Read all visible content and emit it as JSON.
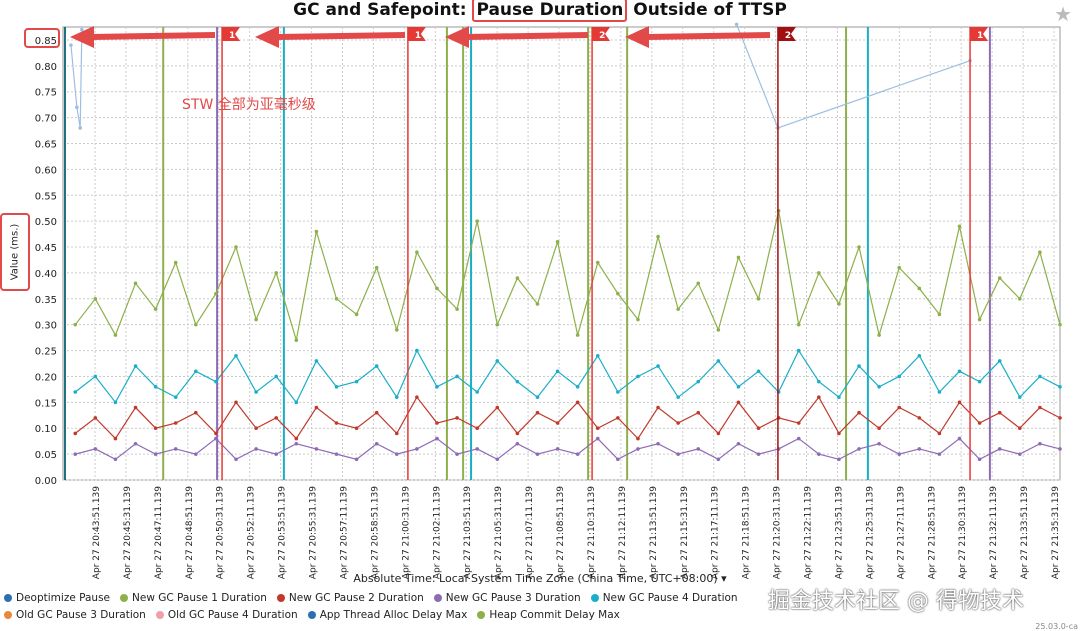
{
  "header": {
    "title_pre": "GC and Safepoint: ",
    "title_highlight": "Pause Duration",
    "title_post": " Outside of TTSP",
    "favorite_icon": "star-icon"
  },
  "annotation": {
    "note": "STW 全部为亚毫秒级"
  },
  "watermark": "掘金技术社区 @ 得物技术",
  "version": "25.03.0-ca",
  "colors": {
    "accent_annotation": "#e24a4a",
    "green": "#8db04a",
    "cyan": "#1aaec8",
    "red": "#c0392b",
    "purple": "#8e6bb5",
    "blue": "#2a6fb0",
    "orange": "#e8893a",
    "pink": "#f0a0a8",
    "lightblue": "#9fbfe0"
  },
  "chart_data": {
    "type": "line",
    "title": "GC and Safepoint: Pause Duration Outside of TTSP",
    "ylabel": "Value (ms.)",
    "xlabel": "Absolute Time: Local System Time Zone (China Time, UTC+08:00) ▾",
    "x_unit": "seconds since Apr 27 20:43:51.139",
    "xlim": [
      -97,
      2918
    ],
    "ylim": [
      0,
      0.875
    ],
    "grid": true,
    "legend_placement": "bottom",
    "yticks": [
      0,
      0.05,
      0.1,
      0.15,
      0.2,
      0.25,
      0.3,
      0.35,
      0.4,
      0.45,
      0.5,
      0.55,
      0.6,
      0.65,
      0.7,
      0.75,
      0.8,
      0.85
    ],
    "xtick_step_seconds": 100,
    "xtick_labels": [
      "Apr 27 20:43:51.139",
      "Apr 27 20:45:31.139",
      "Apr 27 20:47:11.139",
      "Apr 27 20:48:51.139",
      "Apr 27 20:50:31.139",
      "Apr 27 20:52:11.139",
      "Apr 27 20:53:51.139",
      "Apr 27 20:55:31.139",
      "Apr 27 20:57:11.139",
      "Apr 27 20:58:51.139",
      "Apr 27 21:00:31.139",
      "Apr 27 21:02:11.139",
      "Apr 27 21:03:51.139",
      "Apr 27 21:05:31.139",
      "Apr 27 21:07:11.139",
      "Apr 27 21:08:51.139",
      "Apr 27 21:10:31.139",
      "Apr 27 21:12:11.139",
      "Apr 27 21:13:51.139",
      "Apr 27 21:15:31.139",
      "Apr 27 21:17:11.139",
      "Apr 27 21:18:51.139",
      "Apr 27 21:20:31.139",
      "Apr 27 21:22:11.139",
      "Apr 27 21:23:51.139",
      "Apr 27 21:25:31.139",
      "Apr 27 21:27:11.139",
      "Apr 27 21:28:51.139",
      "Apr 27 21:30:31.139",
      "Apr 27 21:32:11.139",
      "Apr 27 21:33:51.139",
      "Apr 27 21:35:31.139"
    ],
    "legend": [
      {
        "name": "Deoptimize Pause",
        "color": "#2a6fb0"
      },
      {
        "name": "New GC Pause 1 Duration",
        "color": "#8db04a"
      },
      {
        "name": "New GC Pause 2 Duration",
        "color": "#c0392b"
      },
      {
        "name": "New GC Pause 3 Duration",
        "color": "#8e6bb5"
      },
      {
        "name": "New GC Pause 4 Duration",
        "color": "#1aaec8"
      },
      {
        "name": "Old GC Pause 3 Duration",
        "color": "#e8893a"
      },
      {
        "name": "Old GC Pause 4 Duration",
        "color": "#f0a0a8"
      },
      {
        "name": "App Thread Alloc Delay Max",
        "color": "#2a6fb0"
      },
      {
        "name": "Heap Commit Delay Max",
        "color": "#8db04a"
      }
    ],
    "series": [
      {
        "name": "New GC Pause 1 Duration",
        "color": "#8db04a",
        "x_start": -60,
        "x_end": 2918,
        "values": [
          0.3,
          0.35,
          0.28,
          0.38,
          0.33,
          0.42,
          0.3,
          0.36,
          0.45,
          0.31,
          0.4,
          0.27,
          0.48,
          0.35,
          0.32,
          0.41,
          0.29,
          0.44,
          0.37,
          0.33,
          0.5,
          0.3,
          0.39,
          0.34,
          0.46,
          0.28,
          0.42,
          0.36,
          0.31,
          0.47,
          0.33,
          0.38,
          0.29,
          0.43,
          0.35,
          0.52,
          0.3,
          0.4,
          0.34,
          0.45,
          0.28,
          0.41,
          0.37,
          0.32,
          0.49,
          0.31,
          0.39,
          0.35,
          0.44,
          0.3
        ]
      },
      {
        "name": "New GC Pause 4 Duration",
        "color": "#1aaec8",
        "x_start": -60,
        "x_end": 2918,
        "values": [
          0.17,
          0.2,
          0.15,
          0.22,
          0.18,
          0.16,
          0.21,
          0.19,
          0.24,
          0.17,
          0.2,
          0.15,
          0.23,
          0.18,
          0.19,
          0.22,
          0.16,
          0.25,
          0.18,
          0.2,
          0.17,
          0.23,
          0.19,
          0.16,
          0.21,
          0.18,
          0.24,
          0.17,
          0.2,
          0.22,
          0.16,
          0.19,
          0.23,
          0.18,
          0.21,
          0.17,
          0.25,
          0.19,
          0.16,
          0.22,
          0.18,
          0.2,
          0.24,
          0.17,
          0.21,
          0.19,
          0.23,
          0.16,
          0.2,
          0.18
        ]
      },
      {
        "name": "New GC Pause 2 Duration",
        "color": "#c0392b",
        "x_start": -60,
        "x_end": 2918,
        "values": [
          0.09,
          0.12,
          0.08,
          0.14,
          0.1,
          0.11,
          0.13,
          0.09,
          0.15,
          0.1,
          0.12,
          0.08,
          0.14,
          0.11,
          0.1,
          0.13,
          0.09,
          0.16,
          0.11,
          0.12,
          0.1,
          0.14,
          0.09,
          0.13,
          0.11,
          0.15,
          0.1,
          0.12,
          0.08,
          0.14,
          0.11,
          0.13,
          0.09,
          0.15,
          0.1,
          0.12,
          0.11,
          0.16,
          0.09,
          0.13,
          0.1,
          0.14,
          0.12,
          0.09,
          0.15,
          0.11,
          0.13,
          0.1,
          0.14,
          0.12
        ]
      },
      {
        "name": "New GC Pause 3 Duration",
        "color": "#8e6bb5",
        "x_start": -60,
        "x_end": 2918,
        "values": [
          0.05,
          0.06,
          0.04,
          0.07,
          0.05,
          0.06,
          0.05,
          0.08,
          0.04,
          0.06,
          0.05,
          0.07,
          0.06,
          0.05,
          0.04,
          0.07,
          0.05,
          0.06,
          0.08,
          0.05,
          0.06,
          0.04,
          0.07,
          0.05,
          0.06,
          0.05,
          0.08,
          0.04,
          0.06,
          0.07,
          0.05,
          0.06,
          0.04,
          0.07,
          0.05,
          0.06,
          0.08,
          0.05,
          0.04,
          0.06,
          0.07,
          0.05,
          0.06,
          0.05,
          0.08,
          0.04,
          0.06,
          0.05,
          0.07,
          0.06
        ]
      },
      {
        "name": "App Thread Alloc Delay Max",
        "color": "#9fbfe0",
        "points": [
          [
            -73,
            0.84
          ],
          [
            -55,
            0.72
          ],
          [
            -45,
            0.68
          ],
          [
            -40,
            0.87
          ]
        ]
      },
      {
        "name": "App Thread Alloc Delay Max (late)",
        "color": "#9fbfe0",
        "points": [
          [
            1940,
            0.88
          ],
          [
            2065,
            0.68
          ],
          [
            2646,
            0.81
          ]
        ]
      }
    ],
    "spikes": [
      {
        "x": -91,
        "color": "#1f6f80"
      },
      {
        "x": 206,
        "color": "#8db04a"
      },
      {
        "x": 369,
        "color": "#8e6bb5"
      },
      {
        "x": 571,
        "color": "#1aaec8"
      },
      {
        "x": 1064,
        "color": "#8db04a"
      },
      {
        "x": 1113,
        "color": "#8db04a"
      },
      {
        "x": 1137,
        "color": "#1aaec8"
      },
      {
        "x": 1491,
        "color": "#8db04a"
      },
      {
        "x": 1609,
        "color": "#8db04a"
      },
      {
        "x": 2271,
        "color": "#8db04a"
      },
      {
        "x": 2337,
        "color": "#1aaec8"
      },
      {
        "x": 2706,
        "color": "#8e6bb5"
      }
    ],
    "event_flags": [
      {
        "x": 384,
        "label": "1",
        "color": "#e53935"
      },
      {
        "x": 946,
        "label": "1",
        "color": "#e53935"
      },
      {
        "x": 1503,
        "label": "2",
        "color": "#e53935"
      },
      {
        "x": 2065,
        "label": "2",
        "color": "#a01010"
      },
      {
        "x": 2646,
        "label": "1",
        "color": "#e53935"
      }
    ]
  },
  "ylabel_text": "Value (ms.)",
  "legend_labels": [
    "Deoptimize Pause",
    "New GC Pause 1 Duration",
    "New GC Pause 2 Duration",
    "New GC Pause 3 Duration",
    "New GC Pause 4 Duration",
    "Old GC Pause 3 Duration",
    "Old GC Pause 4 Duration",
    "App Thread Alloc Delay Max",
    "Heap Commit Delay Max"
  ]
}
